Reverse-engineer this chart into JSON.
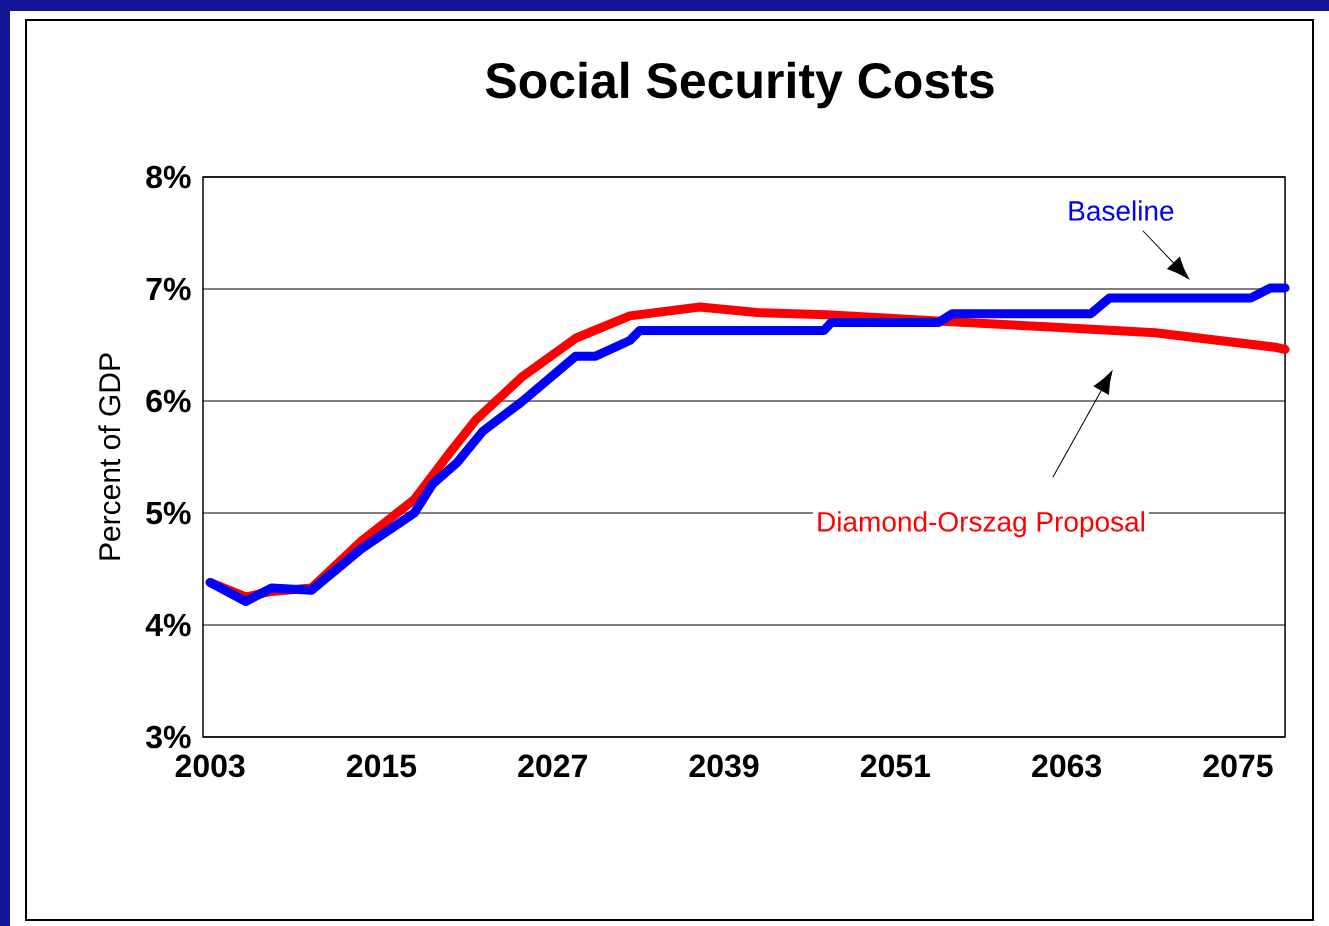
{
  "chart_data": {
    "type": "line",
    "title": "Social Security Costs",
    "ylabel": "Percent of GDP",
    "xlim": [
      2002.5,
      2078.3
    ],
    "ylim": [
      3,
      8
    ],
    "xticks": [
      2003,
      2015,
      2027,
      2039,
      2051,
      2063,
      2075
    ],
    "yticks": [
      {
        "value": 3,
        "label": "3%"
      },
      {
        "value": 4,
        "label": "4%"
      },
      {
        "value": 5,
        "label": "5%"
      },
      {
        "value": 6,
        "label": "6%"
      },
      {
        "value": 7,
        "label": "7%"
      },
      {
        "value": 8,
        "label": "8%"
      }
    ],
    "grid": "y",
    "series": [
      {
        "name": "Diamond-Orszag Proposal",
        "color": "#ff0000",
        "x": [
          2003,
          2005.5,
          2007.3,
          2010.1,
          2013.6,
          2017.3,
          2019.8,
          2021.6,
          2024.8,
          2028.6,
          2032.4,
          2037.3,
          2041.3,
          2046.2,
          2054.6,
          2061.9,
          2069.2,
          2077.6,
          2078.3
        ],
        "values": [
          4.38,
          4.25,
          4.3,
          4.33,
          4.75,
          5.12,
          5.54,
          5.83,
          6.21,
          6.56,
          6.76,
          6.84,
          6.79,
          6.77,
          6.71,
          6.66,
          6.61,
          6.48,
          6.46
        ]
      },
      {
        "name": "Baseline",
        "color": "#0000ff",
        "x": [
          2003,
          2005.5,
          2007.3,
          2010.1,
          2013.6,
          2017.3,
          2018.6,
          2020.3,
          2022.1,
          2024.8,
          2028.6,
          2030.0,
          2032.4,
          2033.1,
          2046.0,
          2046.5,
          2054.0,
          2055.0,
          2064.7,
          2066.0,
          2075.9,
          2077.3,
          2078.3
        ],
        "values": [
          4.38,
          4.21,
          4.33,
          4.31,
          4.68,
          5.0,
          5.26,
          5.45,
          5.73,
          5.99,
          6.4,
          6.4,
          6.54,
          6.63,
          6.63,
          6.7,
          6.7,
          6.78,
          6.78,
          6.92,
          6.92,
          7.01,
          7.01
        ]
      }
    ]
  }
}
